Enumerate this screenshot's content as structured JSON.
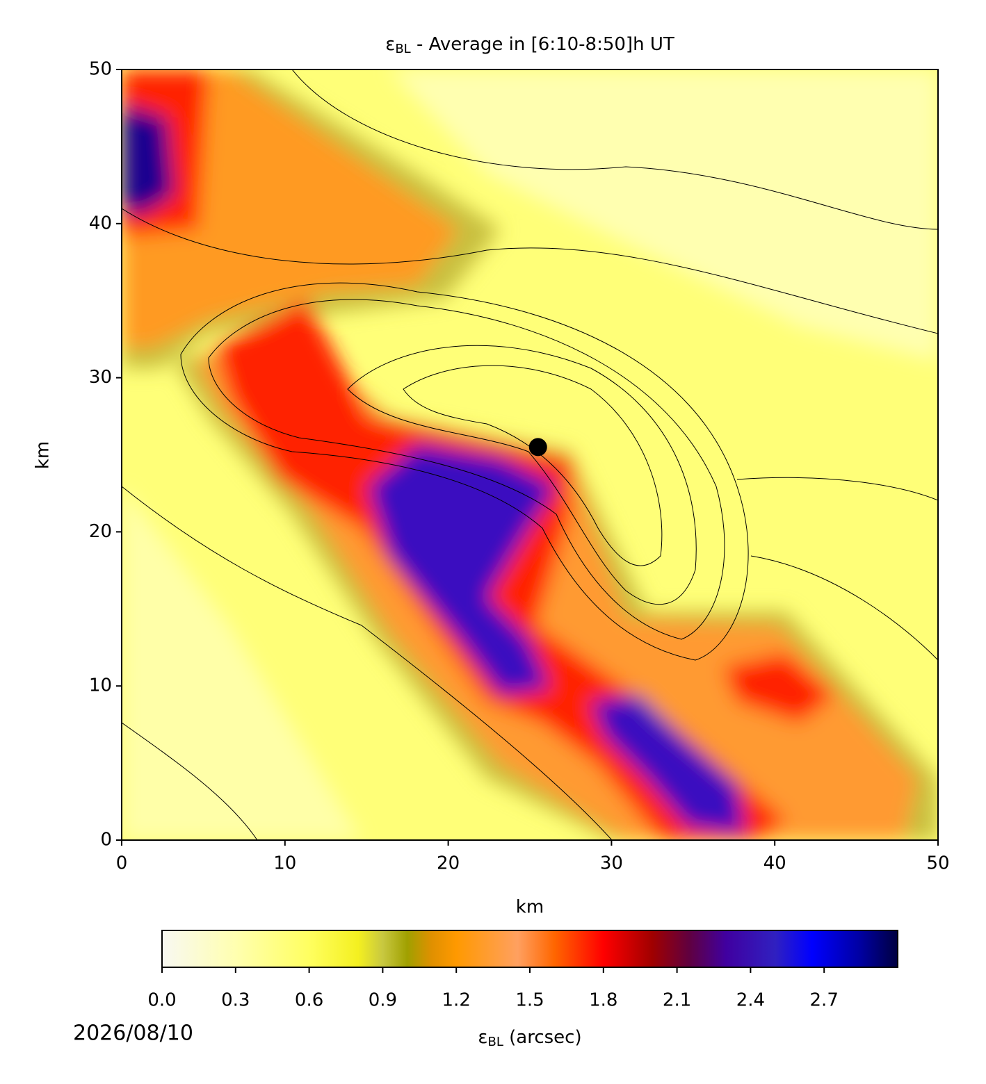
{
  "chart_data": {
    "type": "heatmap",
    "title": {
      "symbol": "ε",
      "subscript": "BL",
      "text": " - Average in [6:10-8:50]h UT"
    },
    "xlabel": "km",
    "ylabel": "km",
    "xlim": [
      0,
      50
    ],
    "ylim": [
      0,
      50
    ],
    "xticks": [
      0,
      10,
      20,
      30,
      40,
      50
    ],
    "yticks": [
      0,
      10,
      20,
      30,
      40,
      50
    ],
    "marker": {
      "x": 25.5,
      "y": 25.5,
      "color": "#000000"
    },
    "colorbar": {
      "label": {
        "symbol": "ε",
        "subscript": "BL",
        "text": " (arcsec)"
      },
      "lim": [
        0,
        3.0
      ],
      "ticks": [
        {
          "value": 0,
          "label": "0.0"
        },
        0.3,
        0.6,
        0.9,
        1.2,
        1.5,
        1.8,
        2.1,
        2.4,
        2.7
      ],
      "colormap": [
        {
          "value": 0,
          "color": "#f8f8f2"
        },
        {
          "value": 0.3,
          "color": "#ffffb0"
        },
        {
          "value": 0.6,
          "color": "#ffff60"
        },
        {
          "value": 0.8,
          "color": "#f4f020"
        },
        {
          "value": 0.9,
          "color": "#c8c840"
        },
        {
          "value": 1.0,
          "color": "#a0a000"
        },
        {
          "value": 1.1,
          "color": "#e09000"
        },
        {
          "value": 1.2,
          "color": "#ff9900"
        },
        {
          "value": 1.45,
          "color": "#ffa060"
        },
        {
          "value": 1.6,
          "color": "#ff6600"
        },
        {
          "value": 1.8,
          "color": "#ff0000"
        },
        {
          "value": 2.0,
          "color": "#a00000"
        },
        {
          "value": 2.15,
          "color": "#600040"
        },
        {
          "value": 2.3,
          "color": "#4000a0"
        },
        {
          "value": 2.5,
          "color": "#3020c0"
        },
        {
          "value": 2.65,
          "color": "#0000ff"
        },
        {
          "value": 2.85,
          "color": "#0000a0"
        },
        {
          "value": 3.0,
          "color": "#000040"
        }
      ]
    },
    "date": "2026/08/10"
  }
}
